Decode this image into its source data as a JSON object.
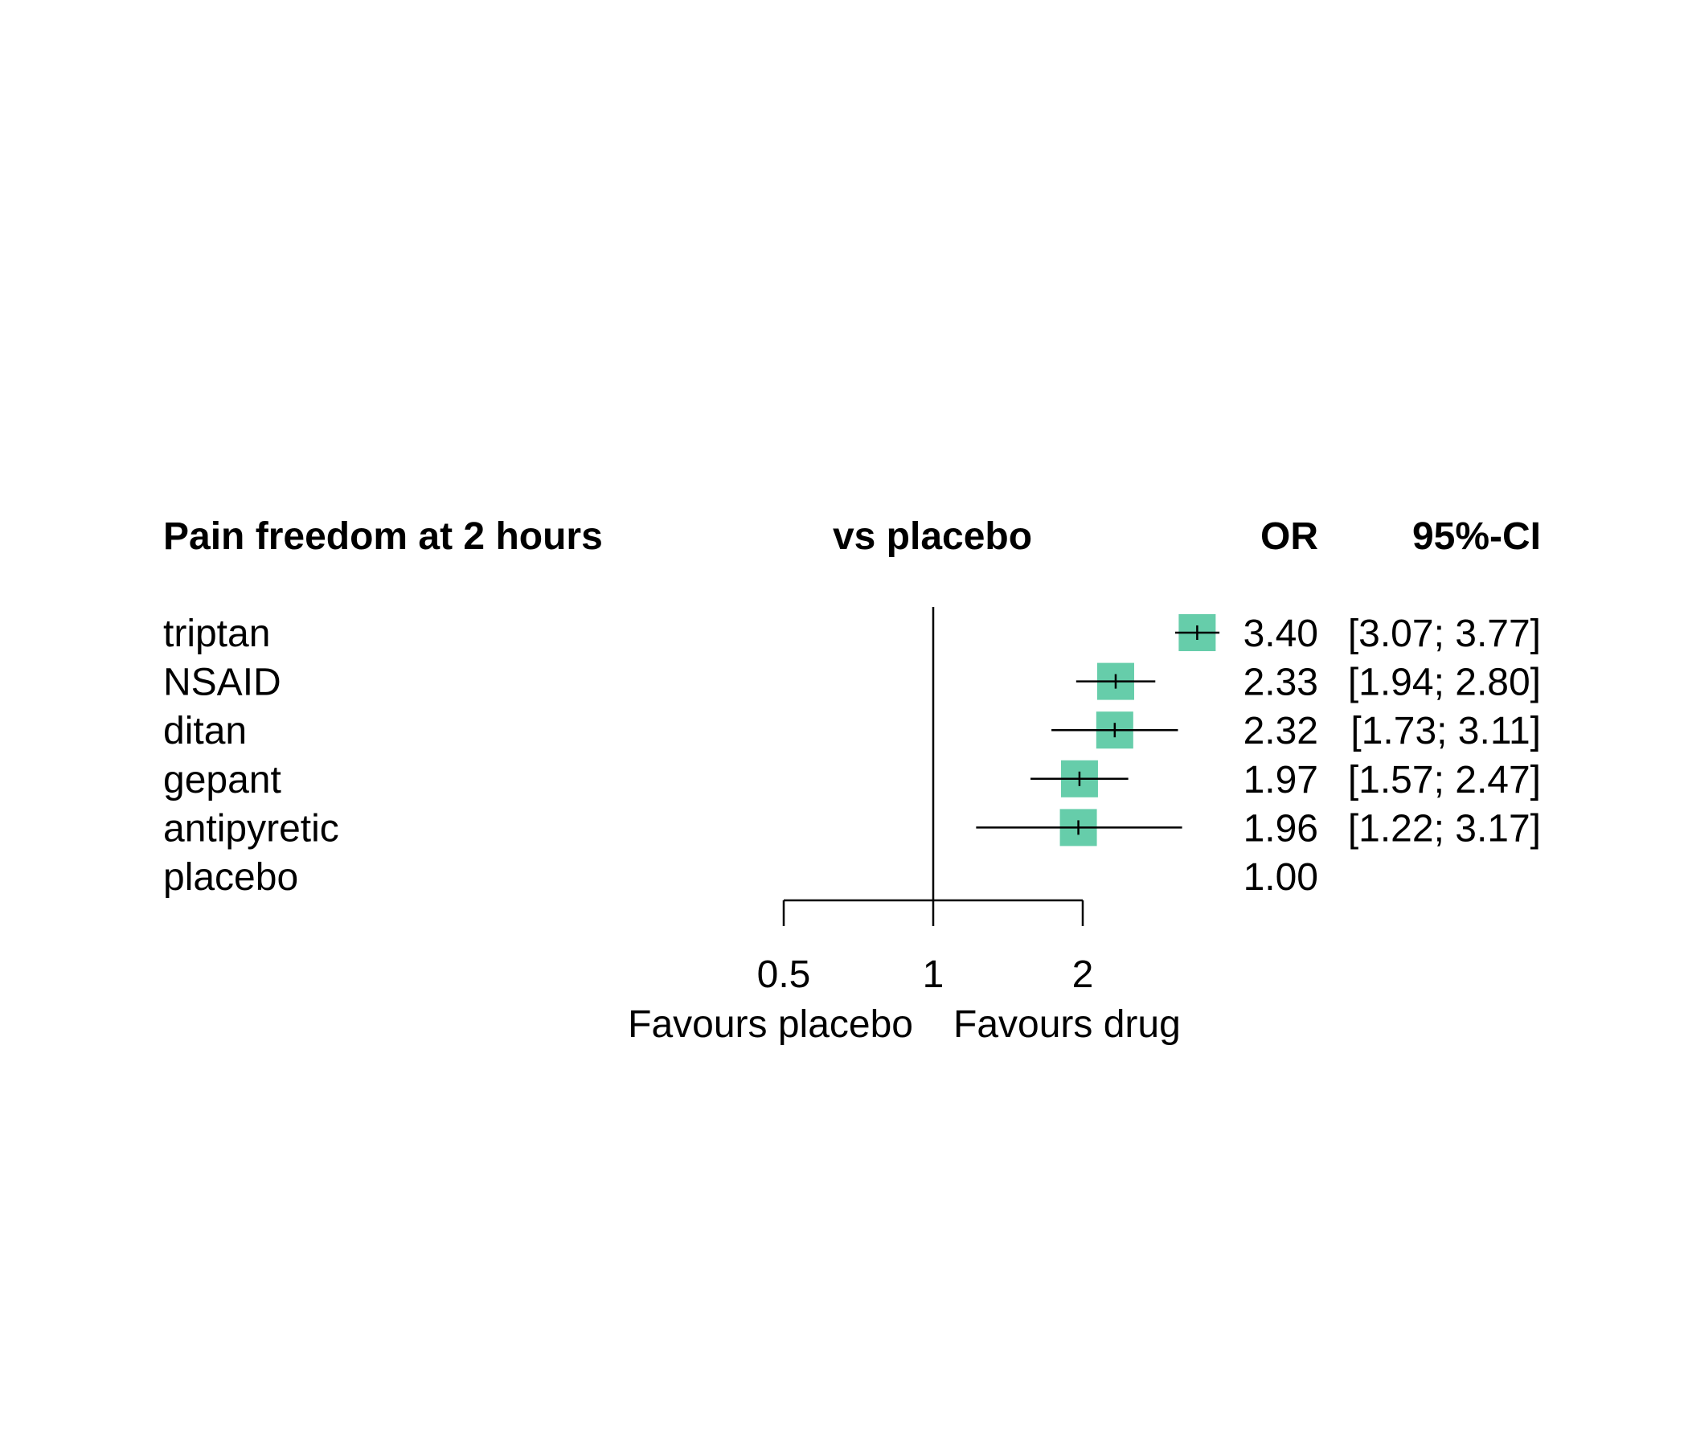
{
  "chart_data": {
    "type": "forest",
    "scale": "log",
    "reference_value": 1,
    "headers": {
      "outcome": "Pain freedom at 2 hours",
      "comparison": "vs placebo",
      "estimate": "OR",
      "interval": "95%-CI"
    },
    "rows": [
      {
        "label": "triptan",
        "or": 3.4,
        "lower": 3.07,
        "upper": 3.77,
        "or_text": "3.40",
        "ci_text": "[3.07; 3.77]",
        "weight": 1.0
      },
      {
        "label": "NSAID",
        "or": 2.33,
        "lower": 1.94,
        "upper": 2.8,
        "or_text": "2.33",
        "ci_text": "[1.94; 2.80]",
        "weight": 1.0
      },
      {
        "label": "ditan",
        "or": 2.32,
        "lower": 1.73,
        "upper": 3.11,
        "or_text": "2.32",
        "ci_text": "[1.73; 3.11]",
        "weight": 1.0
      },
      {
        "label": "gepant",
        "or": 1.97,
        "lower": 1.57,
        "upper": 2.47,
        "or_text": "1.97",
        "ci_text": "[1.57; 2.47]",
        "weight": 1.0
      },
      {
        "label": "antipyretic",
        "or": 1.96,
        "lower": 1.22,
        "upper": 3.17,
        "or_text": "1.96",
        "ci_text": "[1.22; 3.17]",
        "weight": 1.0
      },
      {
        "label": "placebo",
        "or": null,
        "lower": null,
        "upper": null,
        "or_text": "1.00",
        "ci_text": "",
        "weight": 0
      }
    ],
    "x_ticks": [
      0.5,
      1,
      2
    ],
    "x_tick_labels": [
      "0.5",
      "1",
      "2"
    ],
    "xlim": [
      0.5,
      2
    ],
    "favours_left": "Favours placebo",
    "favours_right": "Favours drug",
    "box_color": "#66cdaa",
    "line_color": "#000000",
    "grid": false,
    "legend": "none"
  }
}
